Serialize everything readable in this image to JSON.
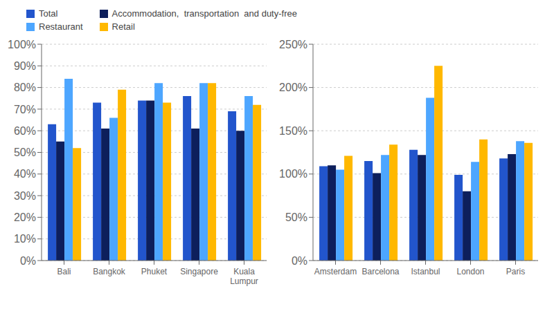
{
  "chart_data": [
    {
      "type": "bar",
      "categories": [
        "Bali",
        "Bangkok",
        "Phuket",
        "Singapore",
        "Kuala\nLumpur"
      ],
      "series": [
        {
          "name": "Total",
          "color": "#2255CC",
          "values": [
            63,
            73,
            74,
            76,
            69
          ]
        },
        {
          "name": "Accommodation,  transportation  and duty-free",
          "color": "#0D1F5C",
          "values": [
            55,
            61,
            74,
            61,
            60
          ]
        },
        {
          "name": "Restaurant",
          "color": "#4DA6FF",
          "values": [
            84,
            66,
            82,
            82,
            76
          ]
        },
        {
          "name": "Retail",
          "color": "#FFB800",
          "values": [
            52,
            79,
            73,
            82,
            72
          ]
        }
      ],
      "ylim": [
        0,
        100
      ],
      "yticks": [
        {
          "value": 0,
          "label": "0%"
        },
        {
          "value": 10,
          "label": "10%"
        },
        {
          "value": 20,
          "label": "20%"
        },
        {
          "value": 30,
          "label": "30%"
        },
        {
          "value": 40,
          "label": "40%"
        },
        {
          "value": 50,
          "label": "50%"
        },
        {
          "value": 60,
          "label": "60%"
        },
        {
          "value": 70,
          "label": "70%"
        },
        {
          "value": 80,
          "label": "80%"
        },
        {
          "value": 90,
          "label": "90%"
        },
        {
          "value": 100,
          "label": "100%"
        }
      ],
      "grid": true,
      "legend": "upper left"
    },
    {
      "type": "bar",
      "categories": [
        "Amsterdam",
        "Barcelona",
        "Istanbul",
        "London",
        "Paris"
      ],
      "series": [
        {
          "name": "Total",
          "color": "#2255CC",
          "values": [
            109,
            115,
            128,
            99,
            118
          ]
        },
        {
          "name": "Accommodation,  transportation  and duty-free",
          "color": "#0D1F5C",
          "values": [
            110,
            101,
            122,
            80,
            123
          ]
        },
        {
          "name": "Restaurant",
          "color": "#4DA6FF",
          "values": [
            105,
            122,
            188,
            114,
            138
          ]
        },
        {
          "name": "Retail",
          "color": "#FFB800",
          "values": [
            121,
            134,
            225,
            140,
            136
          ]
        }
      ],
      "ylim": [
        0,
        250
      ],
      "yticks": [
        {
          "value": 0,
          "label": "0%"
        },
        {
          "value": 50,
          "label": "50%"
        },
        {
          "value": 100,
          "label": "100%"
        },
        {
          "value": 150,
          "label": "150%"
        },
        {
          "value": 200,
          "label": "200%"
        },
        {
          "value": 250,
          "label": "250%"
        }
      ],
      "grid": true
    }
  ]
}
